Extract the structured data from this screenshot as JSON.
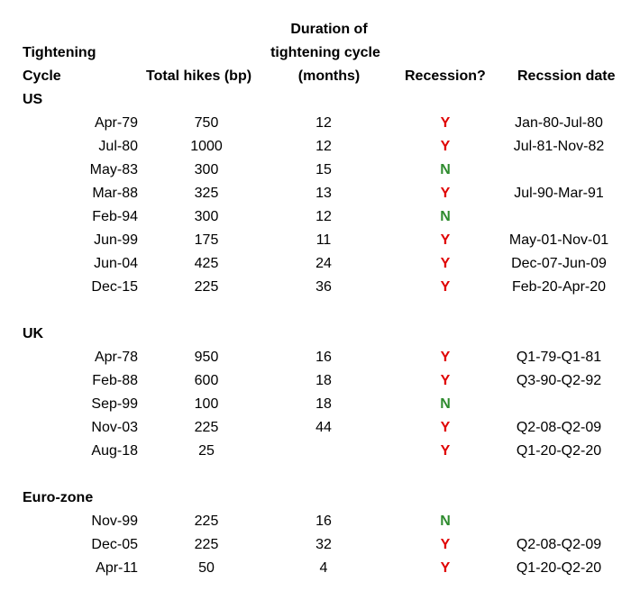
{
  "colors": {
    "yes": "#e00000",
    "no": "#2e8b2e"
  },
  "headers": {
    "cycle_line1": "Tightening",
    "cycle_line2": "Cycle",
    "total_hikes": "Total hikes (bp)",
    "duration_line1": "Duration of",
    "duration_line2": "tightening cycle",
    "duration_line3": "(months)",
    "recession": "Recession?",
    "recession_date": "Recssion date"
  },
  "sections": [
    {
      "name": "US",
      "rows": [
        {
          "date": "Apr-79",
          "hikes": "750",
          "duration": "12",
          "recession": "Y",
          "recession_date": "Jan-80-Jul-80"
        },
        {
          "date": "Jul-80",
          "hikes": "1000",
          "duration": "12",
          "recession": "Y",
          "recession_date": "Jul-81-Nov-82"
        },
        {
          "date": "May-83",
          "hikes": "300",
          "duration": "15",
          "recession": "N",
          "recession_date": ""
        },
        {
          "date": "Mar-88",
          "hikes": "325",
          "duration": "13",
          "recession": "Y",
          "recession_date": "Jul-90-Mar-91"
        },
        {
          "date": "Feb-94",
          "hikes": "300",
          "duration": "12",
          "recession": "N",
          "recession_date": ""
        },
        {
          "date": "Jun-99",
          "hikes": "175",
          "duration": "11",
          "recession": "Y",
          "recession_date": "May-01-Nov-01"
        },
        {
          "date": "Jun-04",
          "hikes": "425",
          "duration": "24",
          "recession": "Y",
          "recession_date": "Dec-07-Jun-09"
        },
        {
          "date": "Dec-15",
          "hikes": "225",
          "duration": "36",
          "recession": "Y",
          "recession_date": "Feb-20-Apr-20"
        }
      ]
    },
    {
      "name": "UK",
      "rows": [
        {
          "date": "Apr-78",
          "hikes": "950",
          "duration": "16",
          "recession": "Y",
          "recession_date": "Q1-79-Q1-81"
        },
        {
          "date": "Feb-88",
          "hikes": "600",
          "duration": "18",
          "recession": "Y",
          "recession_date": "Q3-90-Q2-92"
        },
        {
          "date": "Sep-99",
          "hikes": "100",
          "duration": "18",
          "recession": "N",
          "recession_date": ""
        },
        {
          "date": "Nov-03",
          "hikes": "225",
          "duration": "44",
          "recession": "Y",
          "recession_date": "Q2-08-Q2-09"
        },
        {
          "date": "Aug-18",
          "hikes": "25",
          "duration": "",
          "recession": "Y",
          "recession_date": "Q1-20-Q2-20"
        }
      ]
    },
    {
      "name": "Euro-zone",
      "rows": [
        {
          "date": "Nov-99",
          "hikes": "225",
          "duration": "16",
          "recession": "N",
          "recession_date": ""
        },
        {
          "date": "Dec-05",
          "hikes": "225",
          "duration": "32",
          "recession": "Y",
          "recession_date": "Q2-08-Q2-09"
        },
        {
          "date": "Apr-11",
          "hikes": "50",
          "duration": "4",
          "recession": "Y",
          "recession_date": "Q1-20-Q2-20"
        }
      ]
    }
  ]
}
